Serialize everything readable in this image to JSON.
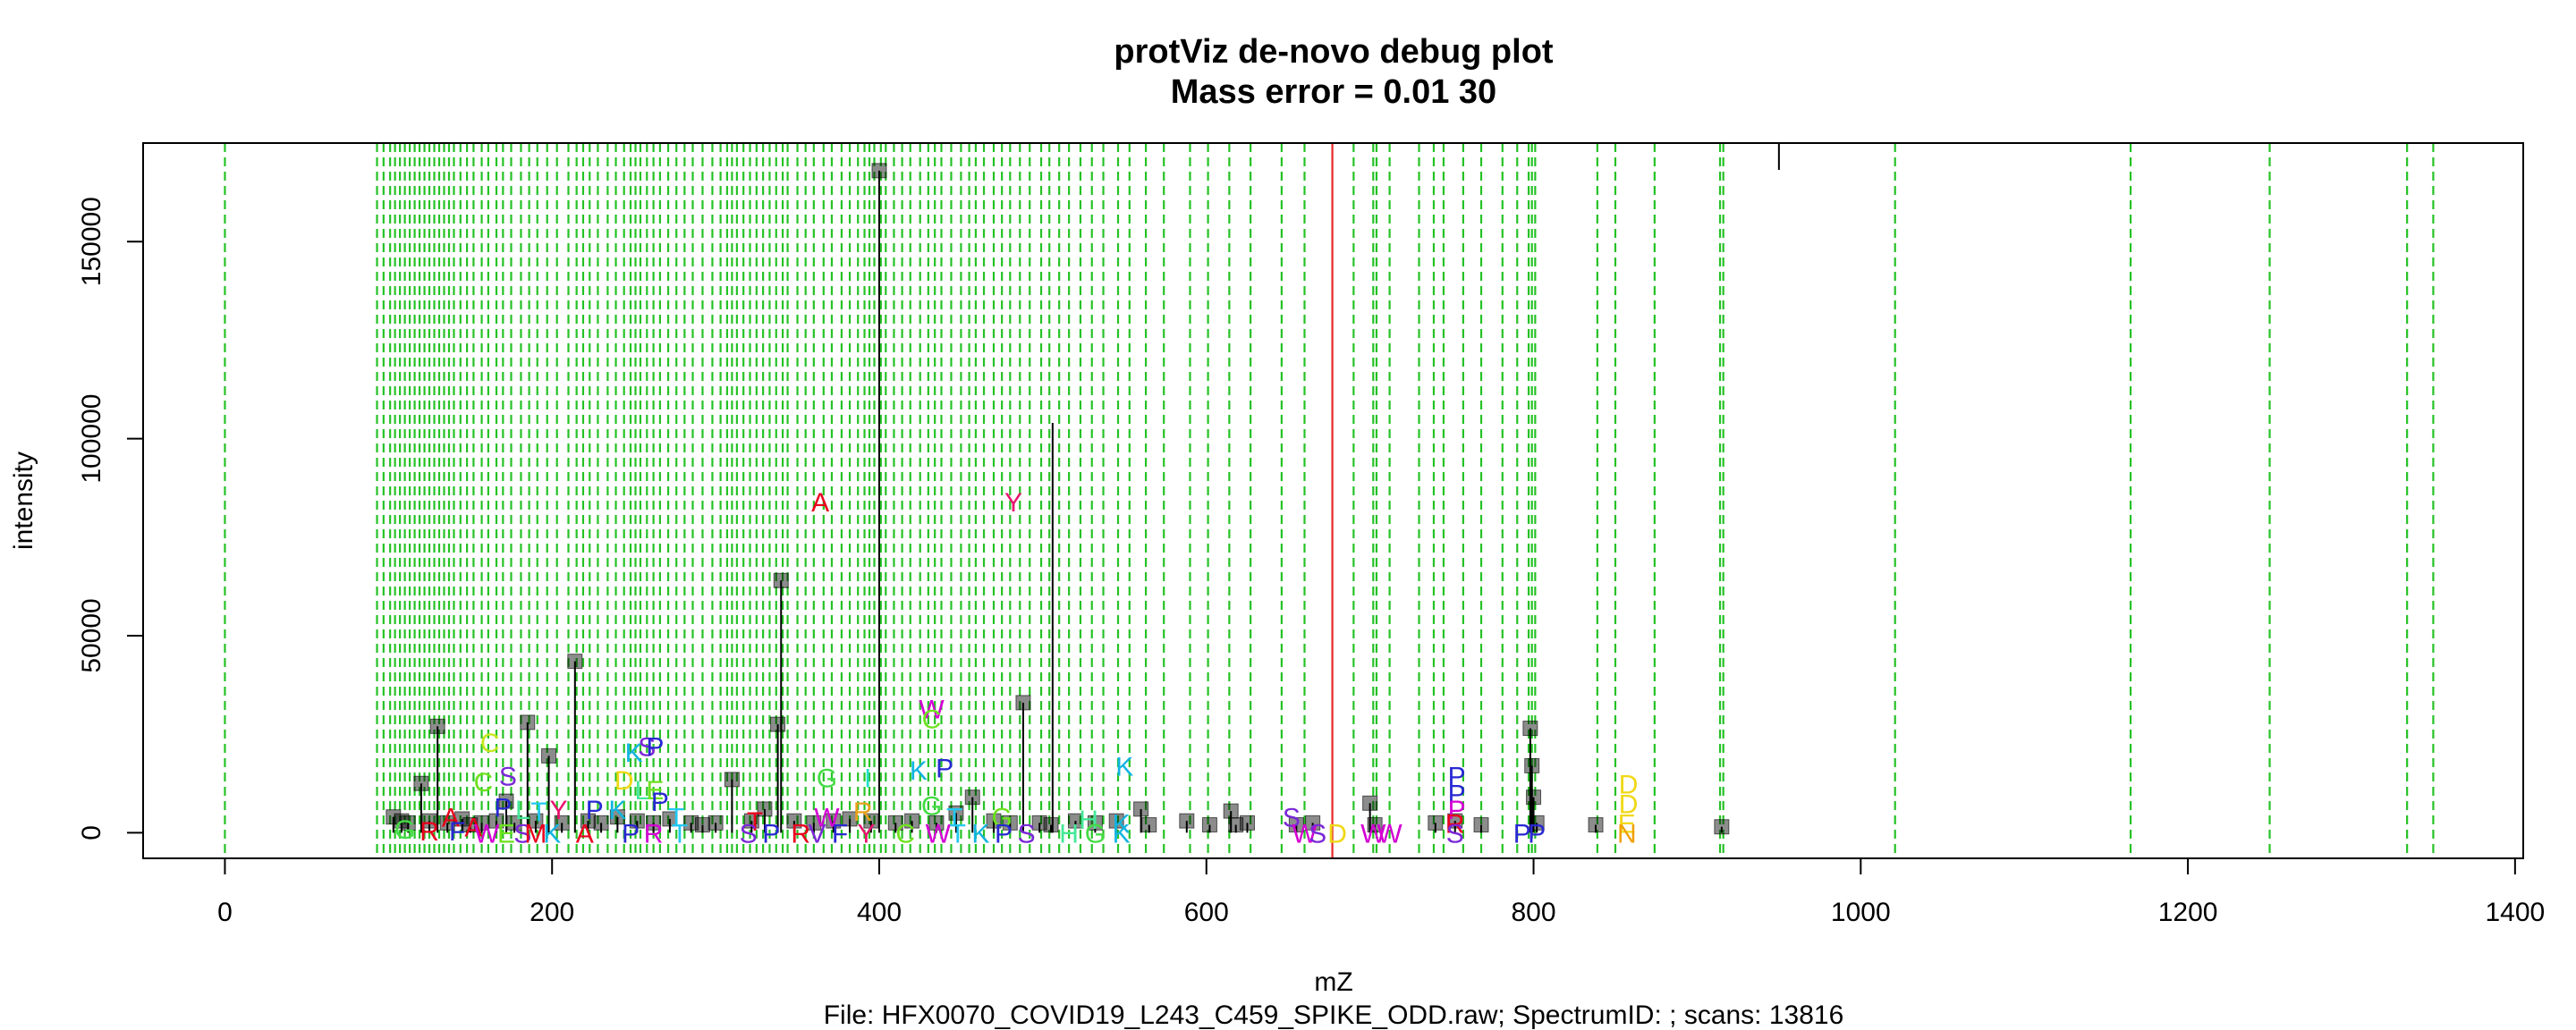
{
  "chart_data": {
    "type": "scatter",
    "title": "protViz de-novo debug plot",
    "subtitle": "Mass error = 0.01 30",
    "xlabel": "mZ",
    "ylabel": "intensity",
    "caption": "File: HFX0070_COVID19_L243_C459_SPIKE_ODD.raw; SpectrumID: ; scans: 13816",
    "xlim": [
      -50,
      1405
    ],
    "ylim": [
      -6500,
      175000
    ],
    "x_ticks": [
      0,
      200,
      400,
      600,
      800,
      1000,
      1200,
      1400
    ],
    "x_tick_labels": [
      "0",
      "200",
      "400",
      "600",
      "800",
      "1000",
      "1200",
      "1400"
    ],
    "y_ticks": [
      0,
      50000,
      100000,
      150000
    ],
    "y_tick_labels": [
      "0",
      "50000",
      "100000",
      "150000"
    ],
    "grid": false,
    "precursor_mz": 677,
    "marker_mz": 950,
    "peaks": [
      {
        "mz": 103,
        "intensity": 4000
      },
      {
        "mz": 108,
        "intensity": 3000
      },
      {
        "mz": 112,
        "intensity": 2500
      },
      {
        "mz": 120,
        "intensity": 12500
      },
      {
        "mz": 125,
        "intensity": 3000
      },
      {
        "mz": 130,
        "intensity": 27000
      },
      {
        "mz": 136,
        "intensity": 2500
      },
      {
        "mz": 145,
        "intensity": 3500
      },
      {
        "mz": 150,
        "intensity": 2000
      },
      {
        "mz": 157,
        "intensity": 2500
      },
      {
        "mz": 166,
        "intensity": 3000
      },
      {
        "mz": 172,
        "intensity": 8000
      },
      {
        "mz": 177,
        "intensity": 2500
      },
      {
        "mz": 185,
        "intensity": 28000
      },
      {
        "mz": 190,
        "intensity": 3000
      },
      {
        "mz": 198,
        "intensity": 19500
      },
      {
        "mz": 206,
        "intensity": 2500
      },
      {
        "mz": 214,
        "intensity": 43500
      },
      {
        "mz": 222,
        "intensity": 3000
      },
      {
        "mz": 230,
        "intensity": 2500
      },
      {
        "mz": 240,
        "intensity": 4000
      },
      {
        "mz": 252,
        "intensity": 3000
      },
      {
        "mz": 262,
        "intensity": 2500
      },
      {
        "mz": 272,
        "intensity": 3500
      },
      {
        "mz": 285,
        "intensity": 2500
      },
      {
        "mz": 292,
        "intensity": 2000
      },
      {
        "mz": 300,
        "intensity": 2500
      },
      {
        "mz": 310,
        "intensity": 13500
      },
      {
        "mz": 322,
        "intensity": 3000
      },
      {
        "mz": 330,
        "intensity": 6000
      },
      {
        "mz": 338,
        "intensity": 27500
      },
      {
        "mz": 340,
        "intensity": 64000
      },
      {
        "mz": 348,
        "intensity": 3000
      },
      {
        "mz": 360,
        "intensity": 2500
      },
      {
        "mz": 372,
        "intensity": 3000
      },
      {
        "mz": 382,
        "intensity": 3500
      },
      {
        "mz": 395,
        "intensity": 3000
      },
      {
        "mz": 400,
        "intensity": 168000
      },
      {
        "mz": 410,
        "intensity": 2500
      },
      {
        "mz": 420,
        "intensity": 3000
      },
      {
        "mz": 435,
        "intensity": 2500
      },
      {
        "mz": 447,
        "intensity": 5000
      },
      {
        "mz": 457,
        "intensity": 9000
      },
      {
        "mz": 470,
        "intensity": 3000
      },
      {
        "mz": 480,
        "intensity": 2500
      },
      {
        "mz": 488,
        "intensity": 33000
      },
      {
        "mz": 498,
        "intensity": 2500
      },
      {
        "mz": 505,
        "intensity": 2000
      },
      {
        "mz": 520,
        "intensity": 3000
      },
      {
        "mz": 532,
        "intensity": 2500
      },
      {
        "mz": 545,
        "intensity": 3000
      },
      {
        "mz": 560,
        "intensity": 6000
      },
      {
        "mz": 565,
        "intensity": 2000
      },
      {
        "mz": 588,
        "intensity": 3000
      },
      {
        "mz": 602,
        "intensity": 2000
      },
      {
        "mz": 615,
        "intensity": 5500
      },
      {
        "mz": 618,
        "intensity": 2000
      },
      {
        "mz": 625,
        "intensity": 2500
      },
      {
        "mz": 655,
        "intensity": 2000
      },
      {
        "mz": 665,
        "intensity": 2500
      },
      {
        "mz": 700,
        "intensity": 7500
      },
      {
        "mz": 703,
        "intensity": 2000
      },
      {
        "mz": 740,
        "intensity": 2500
      },
      {
        "mz": 752,
        "intensity": 3000
      },
      {
        "mz": 768,
        "intensity": 2000
      },
      {
        "mz": 798,
        "intensity": 26500
      },
      {
        "mz": 799,
        "intensity": 17000
      },
      {
        "mz": 800,
        "intensity": 9000
      },
      {
        "mz": 802,
        "intensity": 2500
      },
      {
        "mz": 838,
        "intensity": 2000
      },
      {
        "mz": 915,
        "intensity": 1500
      }
    ],
    "stem_lines": [
      {
        "mz": 506,
        "intensity": 104000
      }
    ],
    "candidate_mz": [
      0,
      93,
      97,
      101,
      104,
      107,
      110,
      113,
      116,
      119,
      122,
      125,
      128,
      131,
      134,
      137,
      140,
      144,
      148,
      152,
      157,
      161,
      166,
      170,
      175,
      181,
      186,
      191,
      197,
      203,
      210,
      215,
      219,
      223,
      228,
      234,
      239,
      244,
      248,
      251,
      254,
      258,
      262,
      266,
      271,
      276,
      281,
      286,
      292,
      298,
      303,
      307,
      310,
      313,
      317,
      321,
      325,
      329,
      333,
      337,
      341,
      344,
      350,
      355,
      360,
      366,
      371,
      377,
      382,
      387,
      391,
      394,
      397,
      401,
      404,
      409,
      414,
      419,
      425,
      430,
      434,
      438,
      444,
      450,
      455,
      459,
      464,
      470,
      475,
      480,
      486,
      492,
      499,
      504,
      510,
      516,
      523,
      530,
      537,
      546,
      553,
      563,
      574,
      590,
      601,
      614,
      627,
      646,
      660,
      690,
      702,
      704,
      712,
      730,
      739,
      745,
      757,
      768,
      781,
      790,
      797,
      799,
      801,
      839,
      850,
      874,
      914,
      916,
      1021,
      1165,
      1250,
      1334,
      1350
    ],
    "annotations": [
      {
        "mz": 364,
        "intensity": 84000,
        "label": "A",
        "color": "#e8001c"
      },
      {
        "mz": 482,
        "intensity": 84000,
        "label": "Y",
        "color": "#e8126e"
      },
      {
        "mz": 432,
        "intensity": 31500,
        "label": "W",
        "color": "#d400d4"
      },
      {
        "mz": 432,
        "intensity": 29000,
        "label": "C",
        "color": "#6ee21e"
      },
      {
        "mz": 162,
        "intensity": 23000,
        "label": "C",
        "color": "#c8e61e"
      },
      {
        "mz": 250,
        "intensity": 20500,
        "label": "K",
        "color": "#12b4e0"
      },
      {
        "mz": 258,
        "intensity": 22000,
        "label": "S",
        "color": "#7a28d6"
      },
      {
        "mz": 263,
        "intensity": 22000,
        "label": "P",
        "color": "#2828d2"
      },
      {
        "mz": 158,
        "intensity": 13000,
        "label": "C",
        "color": "#6ee21e"
      },
      {
        "mz": 173,
        "intensity": 14500,
        "label": "S",
        "color": "#7a28d6"
      },
      {
        "mz": 244,
        "intensity": 13500,
        "label": "D",
        "color": "#f0d814"
      },
      {
        "mz": 255,
        "intensity": 11000,
        "label": "L",
        "color": "#44e898"
      },
      {
        "mz": 263,
        "intensity": 11000,
        "label": "E",
        "color": "#6ee21e"
      },
      {
        "mz": 266,
        "intensity": 8000,
        "label": "P",
        "color": "#2828d2"
      },
      {
        "mz": 368,
        "intensity": 14000,
        "label": "G",
        "color": "#44dc44"
      },
      {
        "mz": 393,
        "intensity": 14000,
        "label": "I",
        "color": "#22e0c8"
      },
      {
        "mz": 424,
        "intensity": 16000,
        "label": "K",
        "color": "#12b4e0"
      },
      {
        "mz": 440,
        "intensity": 16500,
        "label": "P",
        "color": "#2828d2"
      },
      {
        "mz": 550,
        "intensity": 17000,
        "label": "K",
        "color": "#12b4e0"
      },
      {
        "mz": 432,
        "intensity": 7000,
        "label": "G",
        "color": "#44dc44"
      },
      {
        "mz": 138,
        "intensity": 4000,
        "label": "A",
        "color": "#e8001c"
      },
      {
        "mz": 152,
        "intensity": 1500,
        "label": "A",
        "color": "#e8001c"
      },
      {
        "mz": 170,
        "intensity": 6500,
        "label": "P",
        "color": "#2828d2"
      },
      {
        "mz": 182,
        "intensity": 6000,
        "label": "L",
        "color": "#44e898"
      },
      {
        "mz": 192,
        "intensity": 5500,
        "label": "T",
        "color": "#22c8f0"
      },
      {
        "mz": 204,
        "intensity": 6000,
        "label": "Y",
        "color": "#e8126e"
      },
      {
        "mz": 226,
        "intensity": 6000,
        "label": "P",
        "color": "#2828d2"
      },
      {
        "mz": 240,
        "intensity": 6000,
        "label": "K",
        "color": "#12b4e0"
      },
      {
        "mz": 276,
        "intensity": 4000,
        "label": "T",
        "color": "#22c8f0"
      },
      {
        "mz": 324,
        "intensity": 3000,
        "label": "T",
        "color": "#e8001c"
      },
      {
        "mz": 368,
        "intensity": 4000,
        "label": "W",
        "color": "#d400d4"
      },
      {
        "mz": 390,
        "intensity": 5500,
        "label": "R",
        "color": "#e8a01c"
      },
      {
        "mz": 446,
        "intensity": 4000,
        "label": "T",
        "color": "#22c8f0"
      },
      {
        "mz": 475,
        "intensity": 4000,
        "label": "G",
        "color": "#6ee21e"
      },
      {
        "mz": 528,
        "intensity": 3500,
        "label": "H",
        "color": "#44e898"
      },
      {
        "mz": 548,
        "intensity": 2500,
        "label": "K",
        "color": "#12b4e0"
      },
      {
        "mz": 753,
        "intensity": 14500,
        "label": "P",
        "color": "#2828d2"
      },
      {
        "mz": 753,
        "intensity": 10000,
        "label": "P",
        "color": "#2828d2"
      },
      {
        "mz": 753,
        "intensity": 6000,
        "label": "P",
        "color": "#d400d4"
      },
      {
        "mz": 752,
        "intensity": 2500,
        "label": "R",
        "color": "#e8001c"
      },
      {
        "mz": 858,
        "intensity": 12500,
        "label": "D",
        "color": "#f0d814"
      },
      {
        "mz": 858,
        "intensity": 7500,
        "label": "D",
        "color": "#f0d814"
      },
      {
        "mz": 857,
        "intensity": 2500,
        "label": "E",
        "color": "#f0d814"
      },
      {
        "mz": 857,
        "intensity": 0,
        "label": "N",
        "color": "#f0a000"
      },
      {
        "mz": 652,
        "intensity": 4000,
        "label": "S",
        "color": "#7a28d6"
      },
      {
        "mz": 110,
        "intensity": 1000,
        "label": "G",
        "color": "#44dc44"
      },
      {
        "mz": 125,
        "intensity": 500,
        "label": "R",
        "color": "#e8001c"
      },
      {
        "mz": 142,
        "intensity": 500,
        "label": "F",
        "color": "#2828d2"
      },
      {
        "mz": 160,
        "intensity": 0,
        "label": "W",
        "color": "#d400d4"
      },
      {
        "mz": 172,
        "intensity": 0,
        "label": "E",
        "color": "#6ee21e"
      },
      {
        "mz": 182,
        "intensity": 0,
        "label": "S",
        "color": "#7a28d6"
      },
      {
        "mz": 190,
        "intensity": 0,
        "label": "M",
        "color": "#e8001c"
      },
      {
        "mz": 200,
        "intensity": 0,
        "label": "K",
        "color": "#12b4e0"
      },
      {
        "mz": 220,
        "intensity": 0,
        "label": "A",
        "color": "#e8001c"
      },
      {
        "mz": 248,
        "intensity": 0,
        "label": "P",
        "color": "#2828d2"
      },
      {
        "mz": 262,
        "intensity": 0,
        "label": "R",
        "color": "#d400d4"
      },
      {
        "mz": 278,
        "intensity": 0,
        "label": "T",
        "color": "#22c8f0"
      },
      {
        "mz": 320,
        "intensity": 0,
        "label": "S",
        "color": "#7a28d6"
      },
      {
        "mz": 334,
        "intensity": 0,
        "label": "P",
        "color": "#2828d2"
      },
      {
        "mz": 352,
        "intensity": 0,
        "label": "R",
        "color": "#e8001c"
      },
      {
        "mz": 362,
        "intensity": 0,
        "label": "V",
        "color": "#7a28d6"
      },
      {
        "mz": 376,
        "intensity": 0,
        "label": "F",
        "color": "#2828d2"
      },
      {
        "mz": 392,
        "intensity": 0,
        "label": "Y",
        "color": "#e8126e"
      },
      {
        "mz": 416,
        "intensity": 0,
        "label": "C",
        "color": "#6ee21e"
      },
      {
        "mz": 436,
        "intensity": 0,
        "label": "W",
        "color": "#d400d4"
      },
      {
        "mz": 448,
        "intensity": 0,
        "label": "T",
        "color": "#22c8f0"
      },
      {
        "mz": 462,
        "intensity": 0,
        "label": "K",
        "color": "#12b4e0"
      },
      {
        "mz": 476,
        "intensity": 0,
        "label": "P",
        "color": "#2828d2"
      },
      {
        "mz": 490,
        "intensity": 0,
        "label": "S",
        "color": "#7a28d6"
      },
      {
        "mz": 516,
        "intensity": 0,
        "label": "H",
        "color": "#44e898"
      },
      {
        "mz": 532,
        "intensity": 0,
        "label": "G",
        "color": "#44dc44"
      },
      {
        "mz": 548,
        "intensity": 0,
        "label": "K",
        "color": "#12b4e0"
      },
      {
        "mz": 660,
        "intensity": 0,
        "label": "W",
        "color": "#d400d4"
      },
      {
        "mz": 668,
        "intensity": 0,
        "label": "S",
        "color": "#7a28d6"
      },
      {
        "mz": 680,
        "intensity": 0,
        "label": "D",
        "color": "#f0d814"
      },
      {
        "mz": 702,
        "intensity": 0,
        "label": "W",
        "color": "#d400d4"
      },
      {
        "mz": 712,
        "intensity": 0,
        "label": "W",
        "color": "#d400d4"
      },
      {
        "mz": 752,
        "intensity": 0,
        "label": "S",
        "color": "#7a28d6"
      },
      {
        "mz": 793,
        "intensity": 0,
        "label": "P",
        "color": "#2828d2"
      },
      {
        "mz": 802,
        "intensity": 0,
        "label": "P",
        "color": "#2828d2"
      }
    ],
    "colors": {
      "candidate_line": "#00b800",
      "precursor_line": "#e82828",
      "peak": "#000000"
    }
  }
}
